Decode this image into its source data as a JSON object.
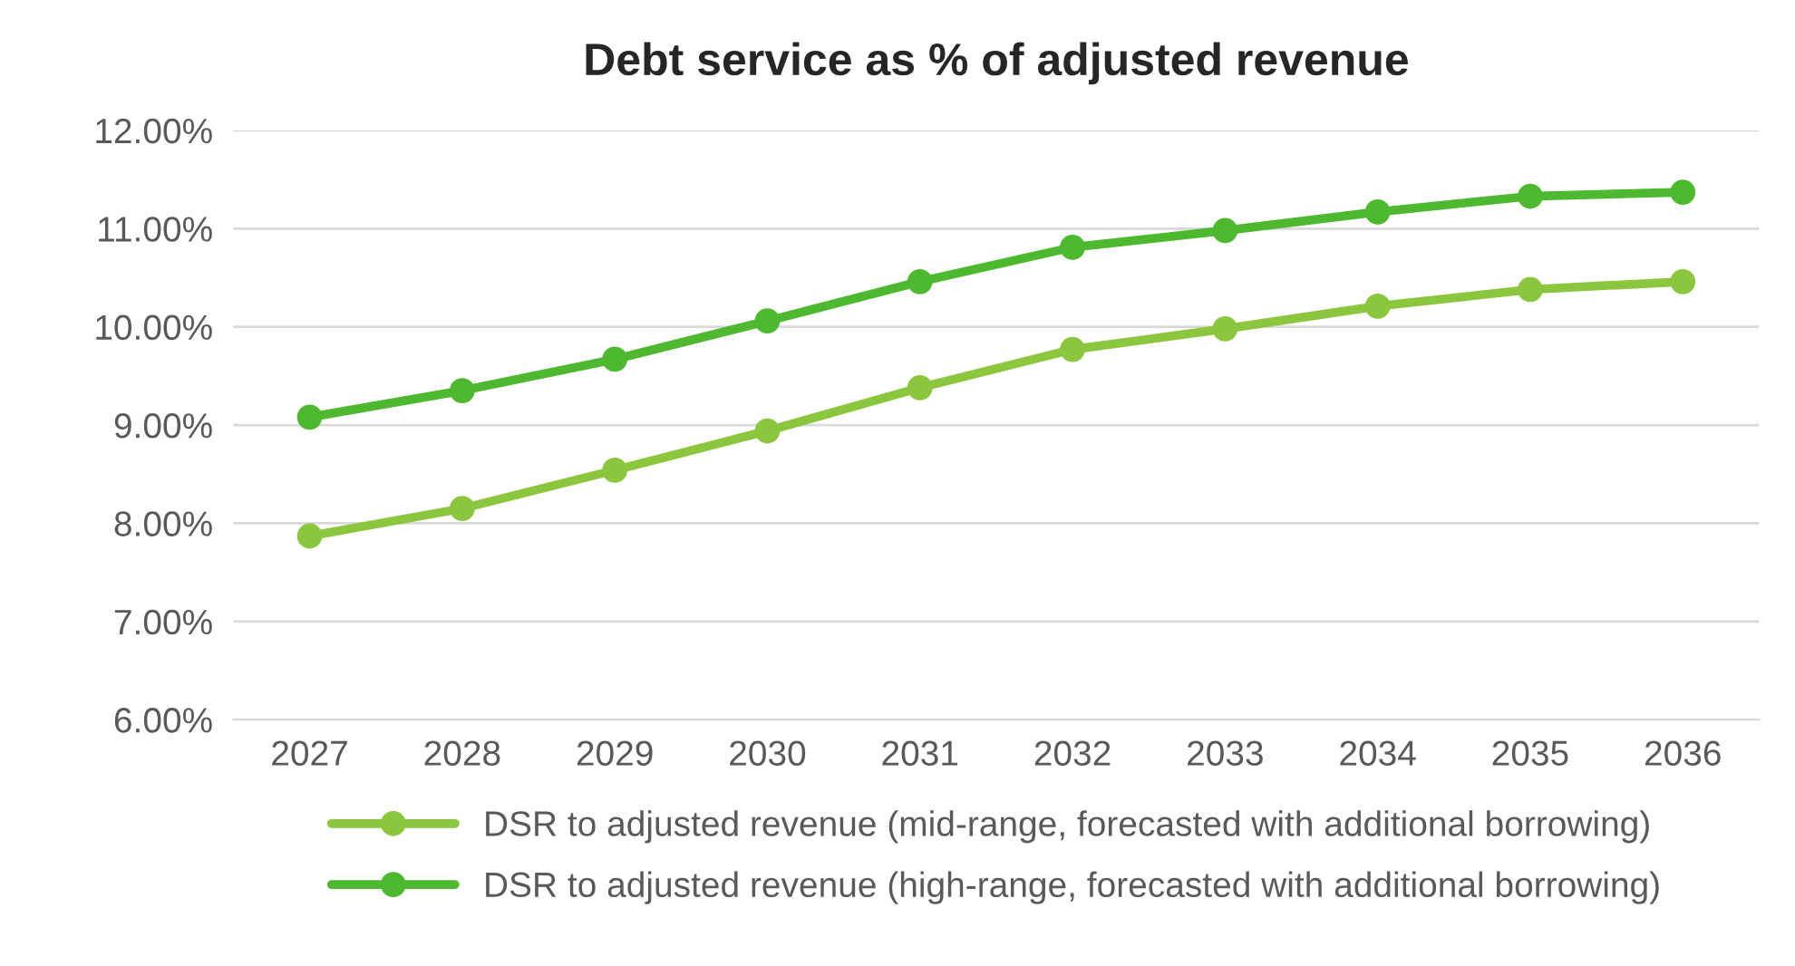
{
  "chart_data": {
    "type": "line",
    "title": "Debt service as % of adjusted revenue",
    "categories": [
      "2027",
      "2028",
      "2029",
      "2030",
      "2031",
      "2032",
      "2033",
      "2034",
      "2035",
      "2036"
    ],
    "series": [
      {
        "name": "DSR to adjusted revenue (mid-range, forecasted with additional borrowing)",
        "color": "#8cc63e",
        "values": [
          7.87,
          8.15,
          8.54,
          8.94,
          9.38,
          9.77,
          9.98,
          10.21,
          10.38,
          10.46
        ]
      },
      {
        "name": "DSR to adjusted revenue (high-range, forecasted with additional borrowing)",
        "color": "#4db830",
        "values": [
          9.08,
          9.35,
          9.67,
          10.06,
          10.46,
          10.81,
          10.98,
          11.17,
          11.33,
          11.37
        ]
      }
    ],
    "ylim": [
      6,
      12
    ],
    "yticks": [
      {
        "value": 6,
        "label": "6.00%"
      },
      {
        "value": 7,
        "label": "7.00%"
      },
      {
        "value": 8,
        "label": "8.00%"
      },
      {
        "value": 9,
        "label": "9.00%"
      },
      {
        "value": 10,
        "label": "10.00%"
      },
      {
        "value": 11,
        "label": "11.00%"
      },
      {
        "value": 12,
        "label": "12.00%"
      }
    ],
    "grid": "y",
    "legend": "bottom",
    "marker": "circle",
    "line_style": "solid"
  }
}
